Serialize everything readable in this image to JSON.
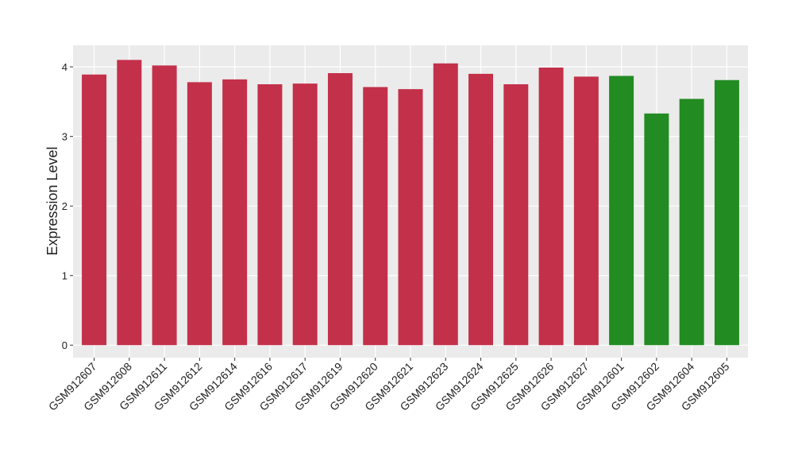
{
  "chart_data": {
    "type": "bar",
    "y_label": "Expression Level",
    "categories": [
      "GSM912607",
      "GSM912608",
      "GSM912611",
      "GSM912612",
      "GSM912614",
      "GSM912616",
      "GSM912617",
      "GSM912619",
      "GSM912620",
      "GSM912621",
      "GSM912623",
      "GSM912624",
      "GSM912625",
      "GSM912626",
      "GSM912627",
      "GSM912601",
      "GSM912602",
      "GSM912604",
      "GSM912605"
    ],
    "values": [
      3.89,
      4.1,
      4.02,
      3.78,
      3.82,
      3.75,
      3.76,
      3.91,
      3.71,
      3.68,
      4.05,
      3.9,
      3.75,
      3.99,
      3.86,
      3.87,
      3.33,
      3.54,
      3.81
    ],
    "colors": [
      "#c3304a",
      "#c3304a",
      "#c3304a",
      "#c3304a",
      "#c3304a",
      "#c3304a",
      "#c3304a",
      "#c3304a",
      "#c3304a",
      "#c3304a",
      "#c3304a",
      "#c3304a",
      "#c3304a",
      "#c3304a",
      "#c3304a",
      "#228b22",
      "#228b22",
      "#228b22",
      "#228b22"
    ],
    "ylim": [
      -0.18,
      4.31
    ],
    "yticks": [
      0,
      1,
      2,
      3,
      4
    ],
    "grid": true
  }
}
